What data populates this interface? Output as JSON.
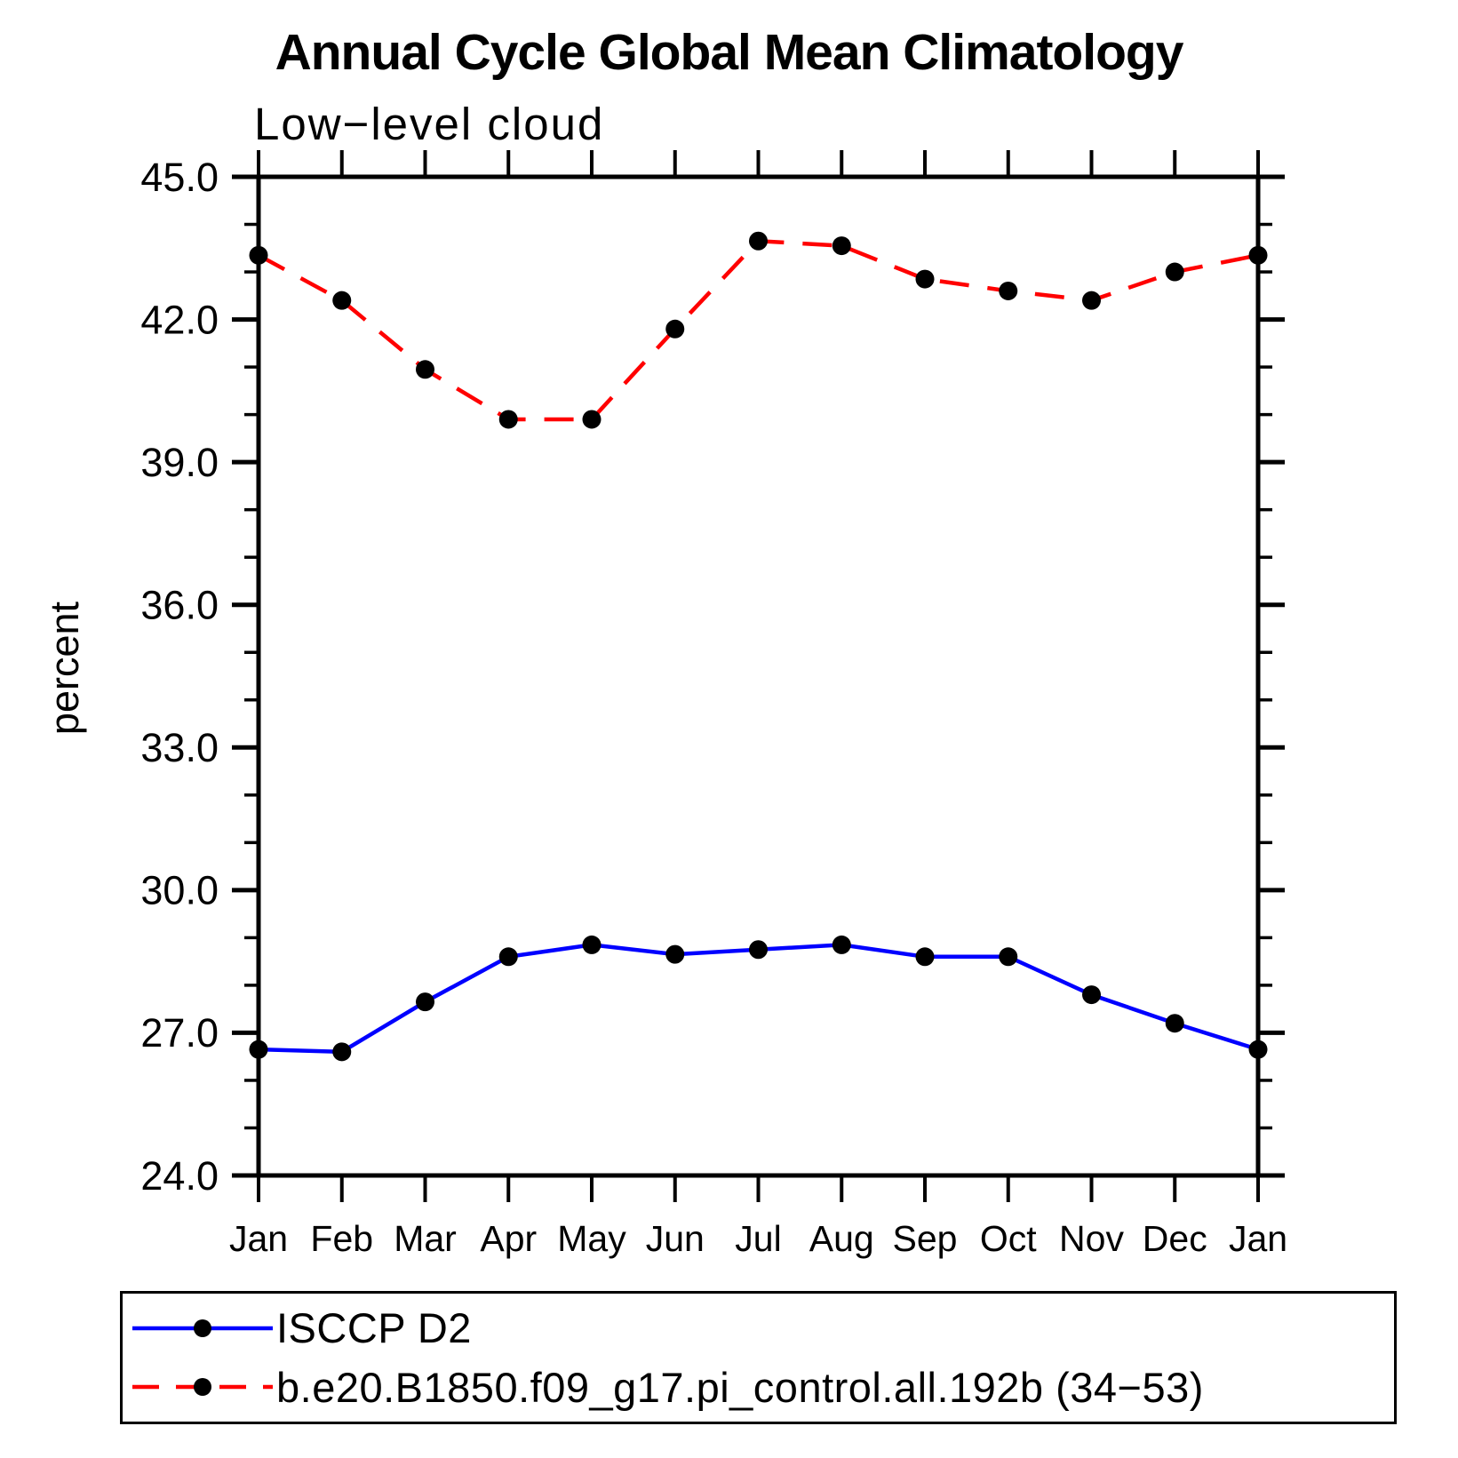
{
  "title": "Annual Cycle Global Mean Climatology",
  "subtitle": "Low−level cloud",
  "chart_data": {
    "type": "line",
    "title": "Annual Cycle Global Mean Climatology",
    "subtitle": "Low−level cloud",
    "xlabel": "",
    "ylabel": "percent",
    "categories": [
      "Jan",
      "Feb",
      "Mar",
      "Apr",
      "May",
      "Jun",
      "Jul",
      "Aug",
      "Sep",
      "Oct",
      "Nov",
      "Dec",
      "Jan"
    ],
    "ylim": [
      24.0,
      45.0
    ],
    "ytick_major_interval": 3.0,
    "ytick_minor_interval": 1.0,
    "ytick_labels": [
      "24.0",
      "27.0",
      "30.0",
      "33.0",
      "36.0",
      "39.0",
      "42.0",
      "45.0"
    ],
    "grid": false,
    "legend_position": "bottom-left-box",
    "frame_color": "#000000",
    "marker_color": "#000000",
    "series": [
      {
        "name": "ISCCP D2",
        "color": "#0000ff",
        "line_style": "solid",
        "marker": "circle",
        "values": [
          26.65,
          26.6,
          27.65,
          28.6,
          28.85,
          28.65,
          28.75,
          28.85,
          28.6,
          28.6,
          27.8,
          27.2,
          26.65
        ]
      },
      {
        "name": "b.e20.B1850.f09_g17.pi_control.all.192b (34−53)",
        "color": "#ff0000",
        "line_style": "dashed",
        "marker": "circle",
        "values": [
          43.35,
          42.4,
          40.95,
          39.9,
          39.9,
          41.8,
          43.65,
          43.55,
          42.85,
          42.6,
          42.4,
          43.0,
          43.35
        ]
      }
    ]
  }
}
